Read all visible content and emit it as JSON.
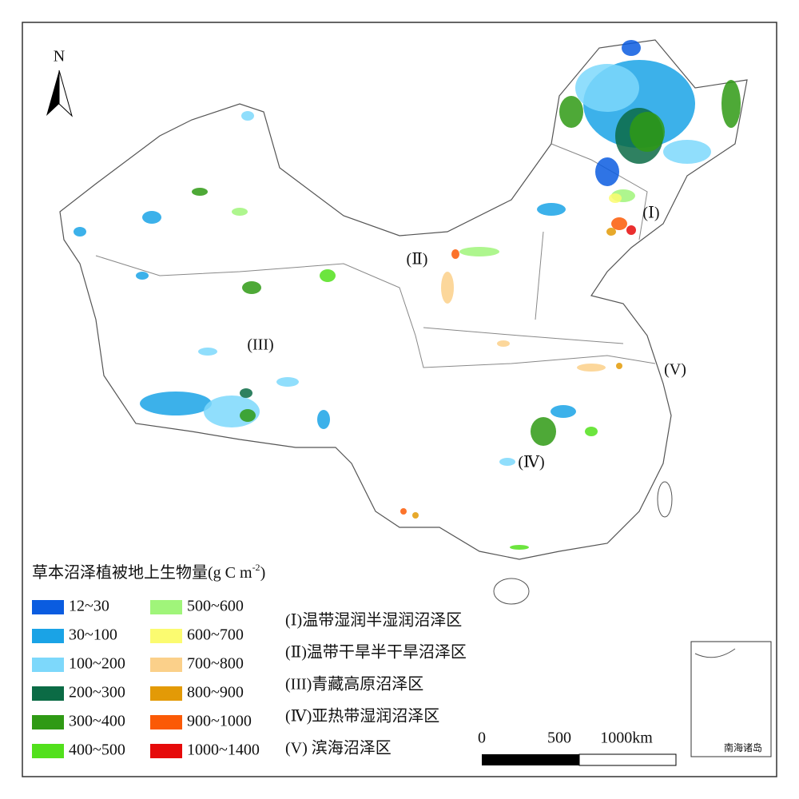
{
  "north": "N",
  "legend": {
    "title": {
      "text": "草本沼泽植被地上生物量(g C m",
      "superscript": "-2",
      "suffix": ")"
    },
    "items": [
      {
        "label": "12~30",
        "color": "#0a5ce0"
      },
      {
        "label": "30~100",
        "color": "#1aa3e6"
      },
      {
        "label": "100~200",
        "color": "#7dd8fb"
      },
      {
        "label": "200~300",
        "color": "#0b6b45"
      },
      {
        "label": "300~400",
        "color": "#2f9a14"
      },
      {
        "label": "400~500",
        "color": "#52e01c"
      },
      {
        "label": "500~600",
        "color": "#a0f57a"
      },
      {
        "label": "600~700",
        "color": "#fbfb70"
      },
      {
        "label": "700~800",
        "color": "#fbd08a"
      },
      {
        "label": "800~900",
        "color": "#e39a06"
      },
      {
        "label": "900~1000",
        "color": "#fb5a06"
      },
      {
        "label": "1000~1400",
        "color": "#e60a0a"
      }
    ]
  },
  "zones": [
    "(Ⅰ)温带湿润半湿润沼泽区",
    "(Ⅱ)温带干旱半干旱沼泽区",
    "(III)青藏高原沼泽区",
    "(Ⅳ)亚热带湿润沼泽区",
    "(V) 滨海沼泽区"
  ],
  "region_labels": [
    "(Ⅰ)",
    "(Ⅱ)",
    "(III)",
    "(Ⅳ)",
    "(V)"
  ],
  "scale_bar": {
    "labels": [
      "0",
      "500",
      "1000km"
    ]
  },
  "inset": {
    "label": "南海诸岛"
  }
}
